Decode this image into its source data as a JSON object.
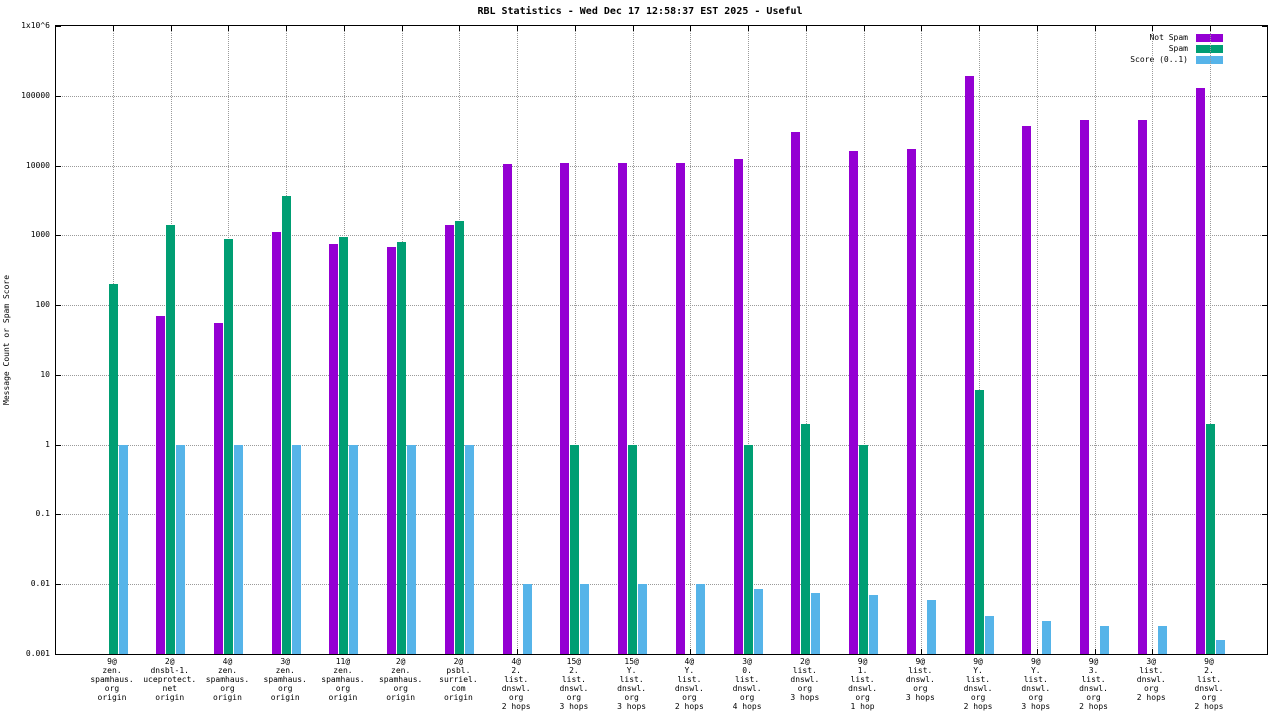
{
  "title": "RBL Statistics - Wed Dec 17 12:58:37 EST 2025 - Useful",
  "chart_data": {
    "type": "bar",
    "title": "RBL Statistics - Wed Dec 17 12:58:37 EST 2025 - Useful",
    "xlabel": "",
    "ylabel": "Message Count or Spam Score",
    "yscale": "log",
    "ylim": [
      0.001,
      1000000
    ],
    "grid": true,
    "legend_position": "top-right",
    "ytick_labels": [
      "1x10^6",
      "100000",
      "10000",
      "1000",
      "100",
      "10",
      "1",
      "0.1",
      "0.01",
      "0.001"
    ],
    "categories": [
      [
        "9@",
        "zen.",
        "spamhaus.",
        "org",
        "origin"
      ],
      [
        "2@",
        "dnsbl-1.",
        "uceprotect.",
        "net",
        "origin"
      ],
      [
        "4@",
        "zen.",
        "spamhaus.",
        "org",
        "origin"
      ],
      [
        "3@",
        "zen.",
        "spamhaus.",
        "org",
        "origin"
      ],
      [
        "11@",
        "zen.",
        "spamhaus.",
        "org",
        "origin"
      ],
      [
        "2@",
        "zen.",
        "spamhaus.",
        "org",
        "origin"
      ],
      [
        "2@",
        "psbl.",
        "surriel.",
        "com",
        "origin"
      ],
      [
        "4@",
        "2.",
        "list.",
        "dnswl.",
        "org",
        "2 hops"
      ],
      [
        "15@",
        "2.",
        "list.",
        "dnswl.",
        "org",
        "3 hops"
      ],
      [
        "15@",
        "Y.",
        "list.",
        "dnswl.",
        "org",
        "3 hops"
      ],
      [
        "4@",
        "Y.",
        "list.",
        "dnswl.",
        "org",
        "2 hops"
      ],
      [
        "3@",
        "0.",
        "list.",
        "dnswl.",
        "org",
        "4 hops"
      ],
      [
        "2@",
        "list.",
        "dnswl.",
        "org",
        "3 hops"
      ],
      [
        "9@",
        "1.",
        "list.",
        "dnswl.",
        "org",
        "1 hop"
      ],
      [
        "9@",
        "list.",
        "dnswl.",
        "org",
        "3 hops"
      ],
      [
        "9@",
        "Y.",
        "list.",
        "dnswl.",
        "org",
        "2 hops"
      ],
      [
        "9@",
        "Y.",
        "list.",
        "dnswl.",
        "org",
        "3 hops"
      ],
      [
        "9@",
        "3.",
        "list.",
        "dnswl.",
        "org",
        "2 hops"
      ],
      [
        "3@",
        "list.",
        "dnswl.",
        "org",
        "2 hops"
      ],
      [
        "9@",
        "2.",
        "list.",
        "dnswl.",
        "org",
        "2 hops"
      ]
    ],
    "series": [
      {
        "name": "Not Spam",
        "color": "#9400d3",
        "values": [
          null,
          70,
          55,
          1100,
          750,
          680,
          1400,
          10500,
          11000,
          11000,
          11000,
          12500,
          30000,
          16000,
          17500,
          190000,
          37000,
          45000,
          45000,
          130000
        ]
      },
      {
        "name": "Spam",
        "color": "#009e73",
        "values": [
          200,
          1400,
          900,
          3700,
          950,
          800,
          1600,
          null,
          1,
          1,
          null,
          1,
          2,
          1,
          null,
          6,
          null,
          null,
          null,
          2
        ]
      },
      {
        "name": "Score (0..1)",
        "color": "#56b4e9",
        "values": [
          1,
          1,
          1,
          1,
          1,
          1,
          1,
          0.01,
          0.01,
          0.01,
          0.01,
          0.0085,
          0.0075,
          0.007,
          0.006,
          0.0035,
          0.003,
          0.0025,
          0.0025,
          0.0016
        ]
      }
    ]
  }
}
